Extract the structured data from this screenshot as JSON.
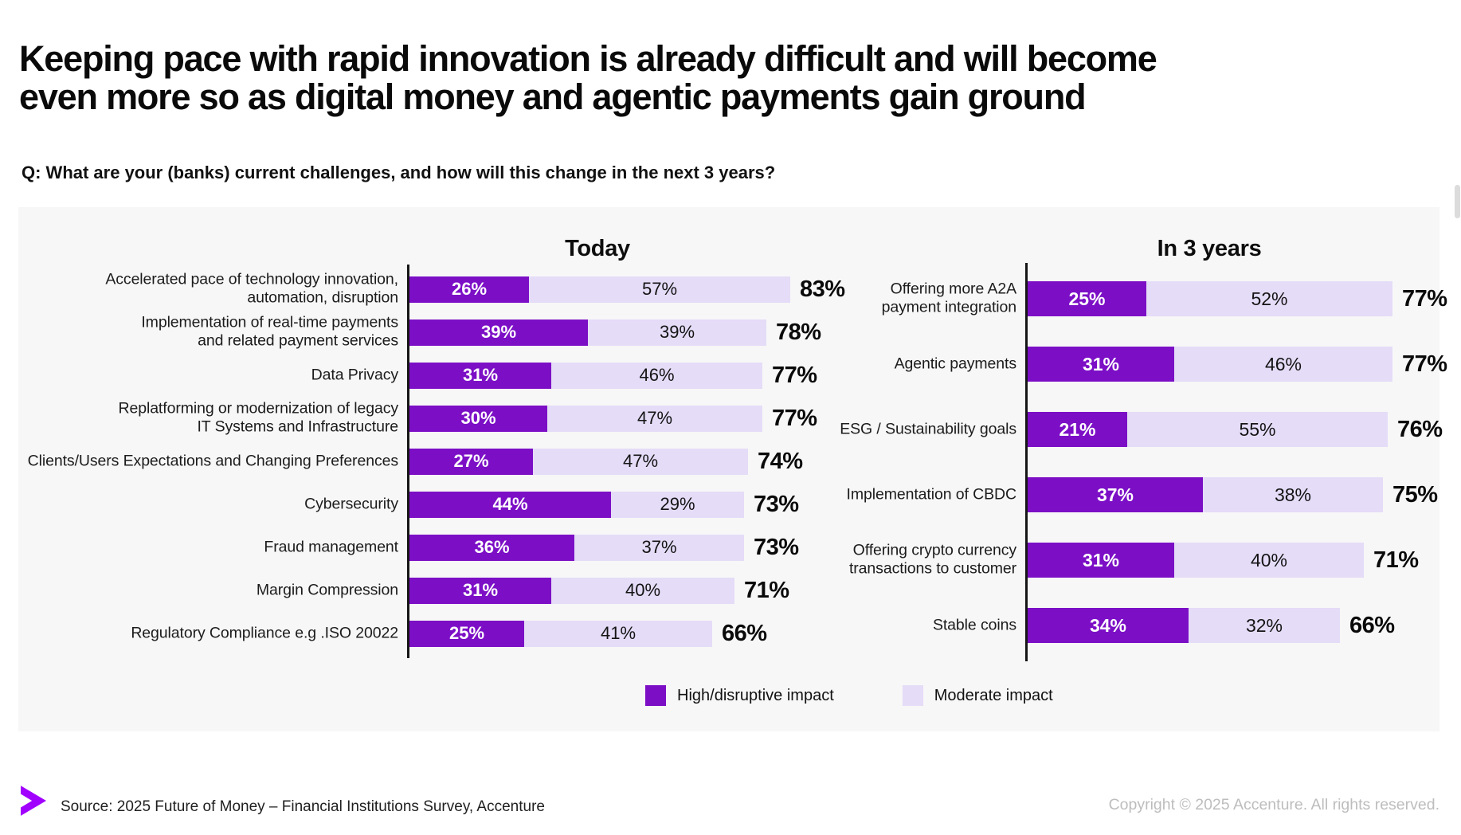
{
  "header": {
    "title_line1": "Keeping pace with rapid innovation is already difficult and will become",
    "title_line2": "even more so as digital money and agentic payments gain ground",
    "question": "Q: What are your (banks) current challenges, and how will this change in the next 3 years?"
  },
  "colors": {
    "high": "#7C0FC6",
    "moderate": "#E5DCF8",
    "accent": "#A100FF",
    "panel": "#F7F7F7"
  },
  "legend": [
    {
      "label": "High/disruptive impact",
      "color_key": "high"
    },
    {
      "label": "Moderate impact",
      "color_key": "moderate"
    }
  ],
  "chart_data": [
    {
      "type": "bar",
      "orientation": "horizontal",
      "stacked": true,
      "title": "Today",
      "x_unit": "percent",
      "xlim": [
        0,
        100
      ],
      "grid": false,
      "series_names": [
        "High/disruptive impact",
        "Moderate impact"
      ],
      "rows": [
        {
          "label": "Accelerated pace of technology innovation,\nautomation, disruption",
          "high": 26,
          "moderate": 57,
          "total": 83
        },
        {
          "label": "Implementation of real-time payments\nand related payment services",
          "high": 39,
          "moderate": 39,
          "total": 78
        },
        {
          "label": "Data Privacy",
          "high": 31,
          "moderate": 46,
          "total": 77
        },
        {
          "label": "Replatforming or modernization of legacy\nIT Systems and Infrastructure",
          "high": 30,
          "moderate": 47,
          "total": 77
        },
        {
          "label": "Clients/Users Expectations and Changing Preferences",
          "high": 27,
          "moderate": 47,
          "total": 74
        },
        {
          "label": "Cybersecurity",
          "high": 44,
          "moderate": 29,
          "total": 73
        },
        {
          "label": "Fraud management",
          "high": 36,
          "moderate": 37,
          "total": 73
        },
        {
          "label": "Margin Compression",
          "high": 31,
          "moderate": 40,
          "total": 71
        },
        {
          "label": "Regulatory Compliance e.g .ISO 20022",
          "high": 25,
          "moderate": 41,
          "total": 66
        }
      ]
    },
    {
      "type": "bar",
      "orientation": "horizontal",
      "stacked": true,
      "title": "In 3 years",
      "x_unit": "percent",
      "xlim": [
        0,
        100
      ],
      "grid": false,
      "series_names": [
        "High/disruptive impact",
        "Moderate impact"
      ],
      "rows": [
        {
          "label": "Offering more A2A\npayment integration",
          "high": 25,
          "moderate": 52,
          "total": 77
        },
        {
          "label": "Agentic payments",
          "high": 31,
          "moderate": 46,
          "total": 77
        },
        {
          "label": "ESG / Sustainability goals",
          "high": 21,
          "moderate": 55,
          "total": 76
        },
        {
          "label": "Implementation of CBDC",
          "high": 37,
          "moderate": 38,
          "total": 75
        },
        {
          "label": "Offering crypto currency\ntransactions to customer",
          "high": 31,
          "moderate": 40,
          "total": 71
        },
        {
          "label": "Stable coins",
          "high": 34,
          "moderate": 32,
          "total": 66
        }
      ]
    }
  ],
  "footer": {
    "source": "Source: 2025 Future of Money – Financial Institutions Survey, Accenture",
    "copyright": "Copyright © 2025 Accenture. All rights reserved."
  }
}
